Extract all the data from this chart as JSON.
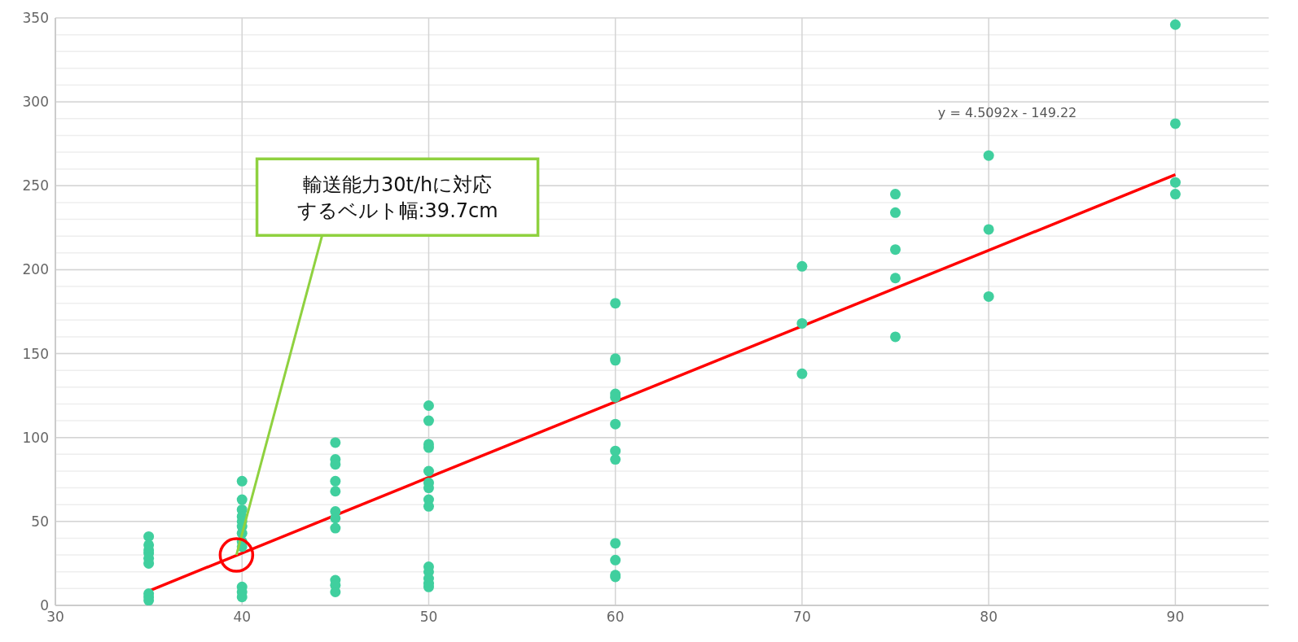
{
  "chart_data": {
    "type": "scatter",
    "xlim": [
      30,
      95
    ],
    "xticks": [
      30,
      40,
      50,
      60,
      70,
      80,
      90
    ],
    "ylim": [
      0,
      350
    ],
    "yticks": [
      0,
      50,
      100,
      150,
      200,
      250,
      300,
      350
    ],
    "grid": true,
    "marker": "circle",
    "series": [
      {
        "color": "#40cf9e",
        "x": [
          35,
          35,
          35,
          35,
          35,
          35,
          35,
          35,
          35,
          40,
          40,
          40,
          40,
          40,
          40,
          40,
          40,
          40,
          40,
          40,
          40,
          45,
          45,
          45,
          45,
          45,
          45,
          45,
          45,
          45,
          45,
          45,
          50,
          50,
          50,
          50,
          50,
          50,
          50,
          50,
          50,
          50,
          50,
          50,
          50,
          50,
          60,
          60,
          60,
          60,
          60,
          60,
          60,
          60,
          60,
          60,
          60,
          60,
          70,
          70,
          70,
          75,
          75,
          75,
          75,
          75,
          80,
          80,
          80,
          90,
          90,
          90,
          90
        ],
        "values": [
          41,
          36,
          33,
          31,
          28,
          25,
          7,
          5,
          3,
          74,
          63,
          57,
          53,
          50,
          47,
          43,
          38,
          35,
          11,
          8,
          5,
          97,
          87,
          84,
          74,
          68,
          56,
          52,
          46,
          15,
          12,
          8,
          119,
          110,
          96,
          94,
          80,
          73,
          70,
          63,
          59,
          23,
          20,
          16,
          13,
          11,
          180,
          147,
          146,
          126,
          124,
          108,
          92,
          87,
          37,
          27,
          18,
          17,
          202,
          168,
          138,
          245,
          234,
          212,
          195,
          160,
          268,
          224,
          184,
          346,
          287,
          252,
          245
        ]
      },
      {
        "type": "line",
        "color": "#ff0000",
        "line_style": "solid",
        "marker": "none",
        "x": [
          35,
          90
        ],
        "values": [
          8.6,
          256.6
        ]
      }
    ],
    "annotations": [
      "y = 4.5092x  - 149.22",
      {
        "text": "輸送能力30t/hに対応するベルト幅:39.7cm",
        "x": 39.7,
        "y": 30
      }
    ]
  }
}
